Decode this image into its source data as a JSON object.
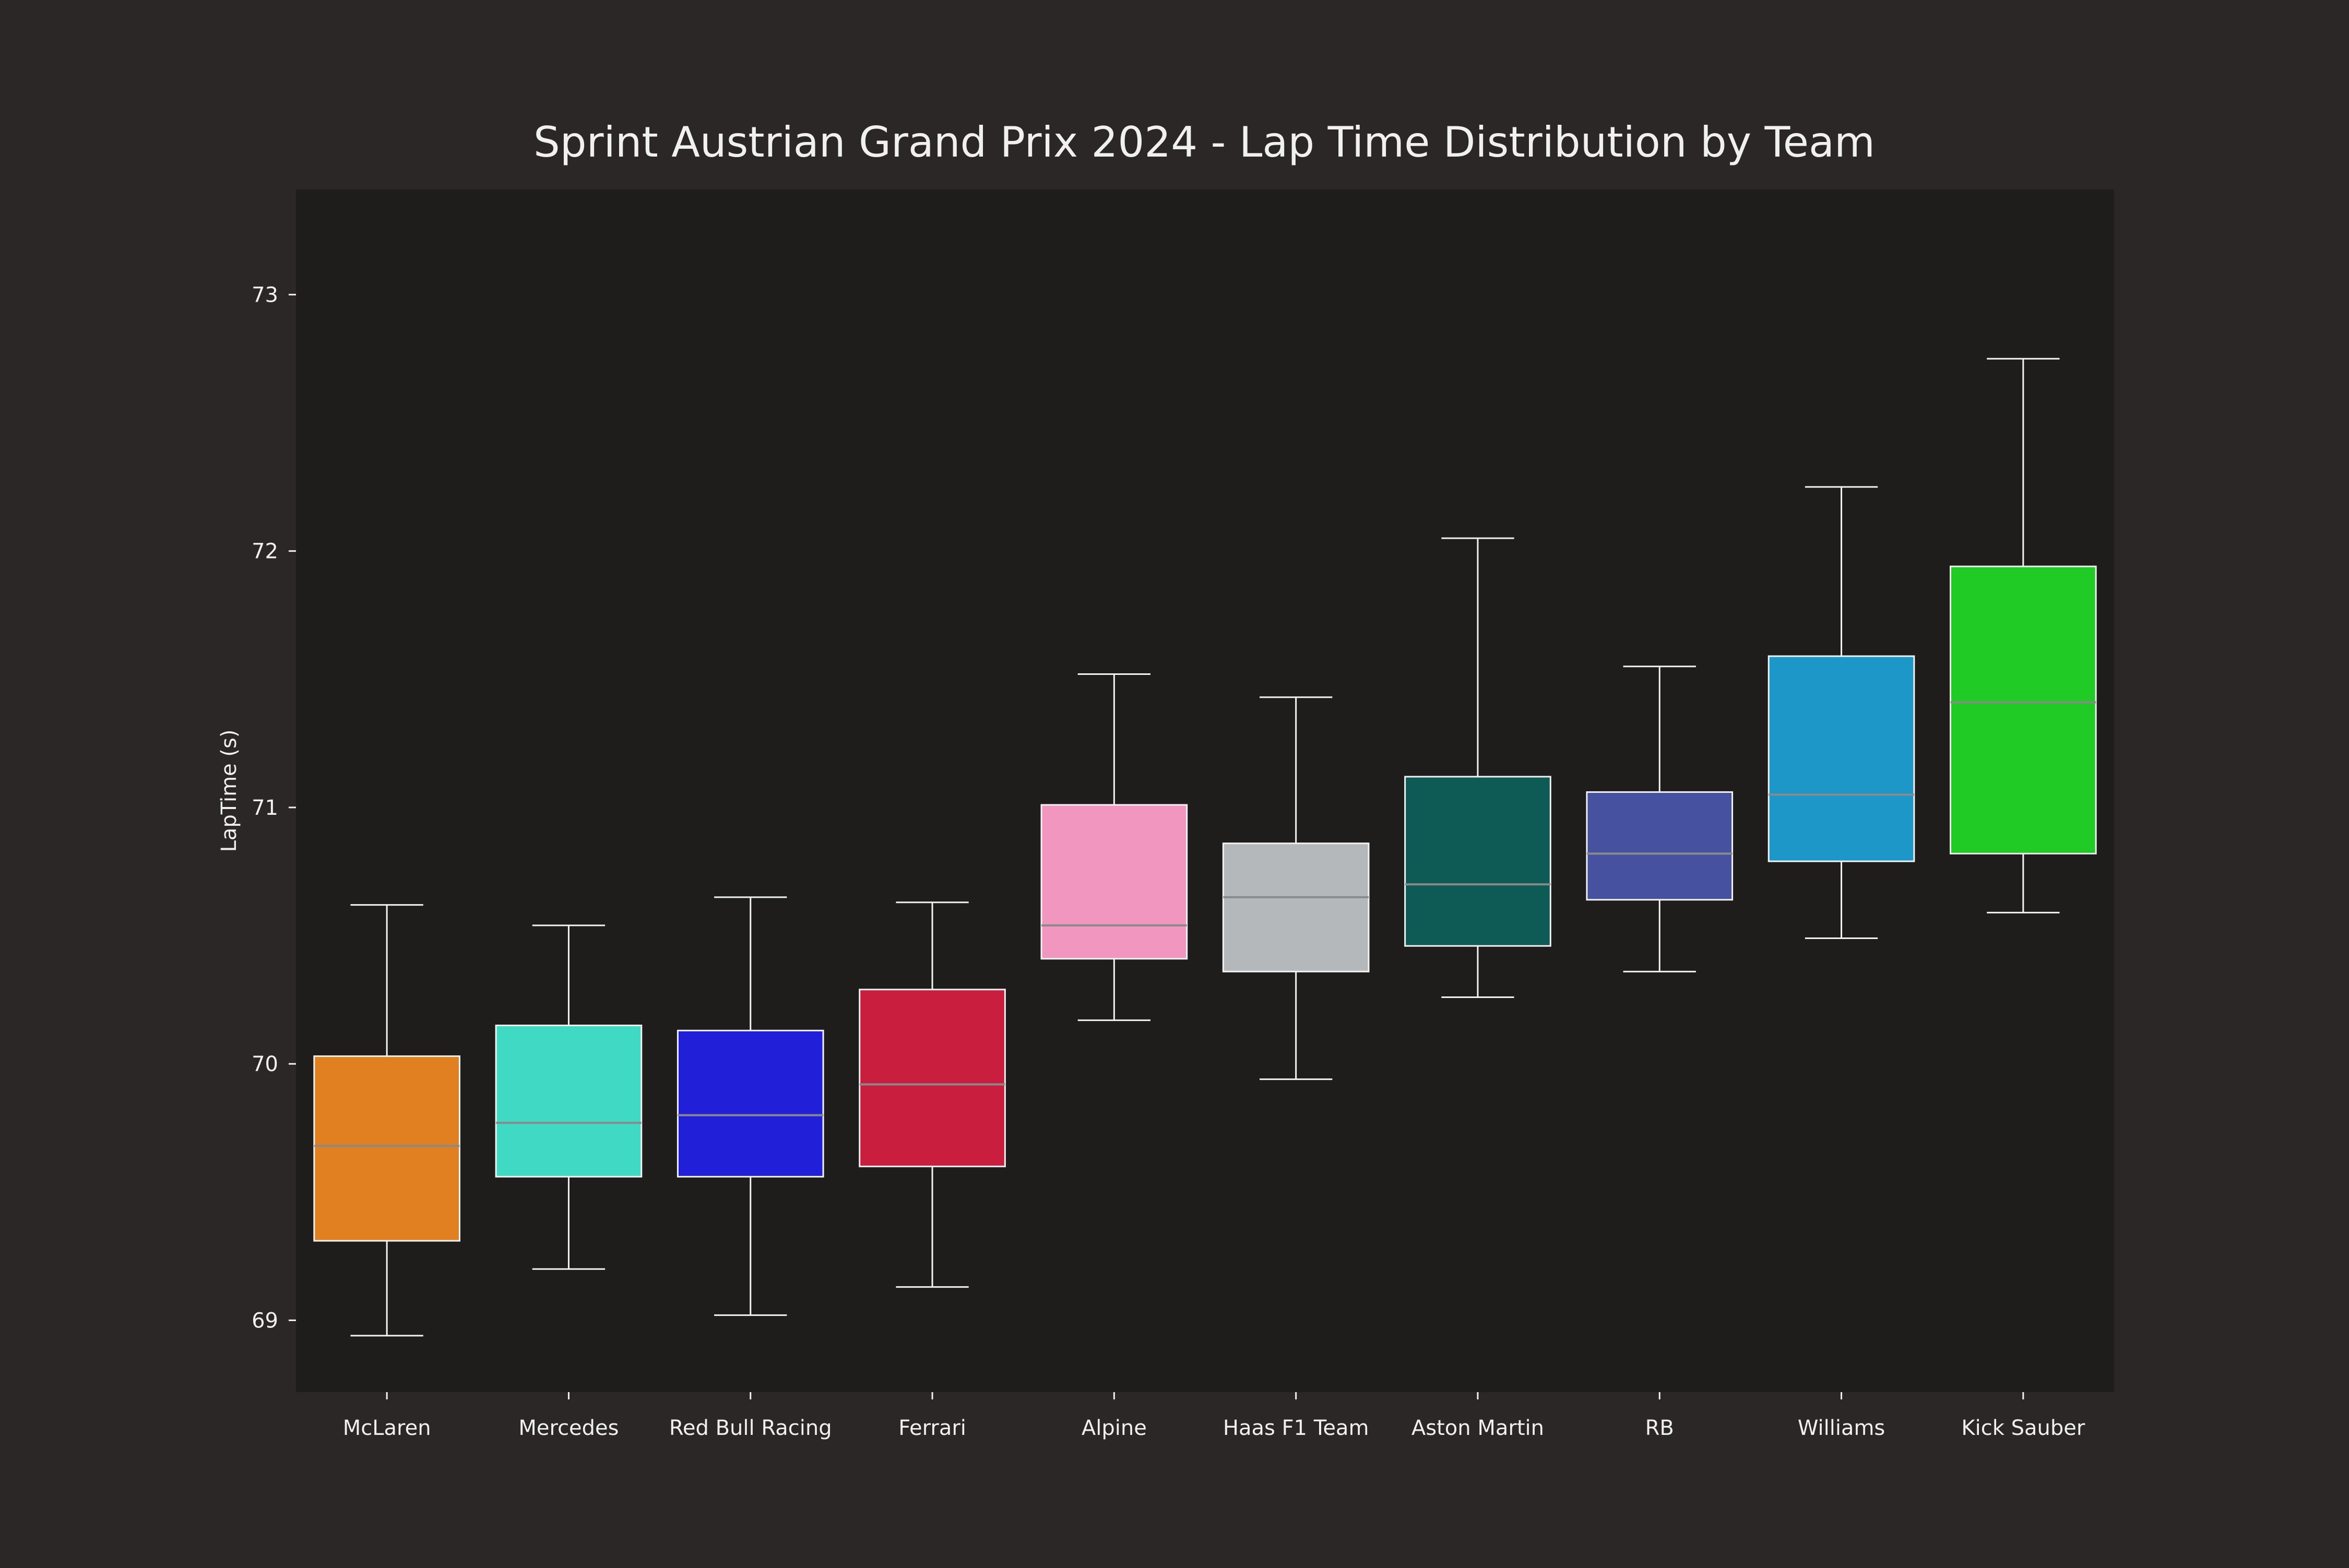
{
  "chart_data": {
    "type": "box",
    "title": "Sprint Austrian Grand Prix 2024 - Lap Time Distribution by Team",
    "xlabel": "",
    "ylabel": "LapTime (s)",
    "ylim": [
      68.72,
      73.41
    ],
    "yticks": [
      69,
      70,
      71,
      72,
      73
    ],
    "grid": false,
    "colors": {
      "figure_bg": "#2a2726",
      "axes_bg": "#1e1d1c",
      "text": "#f0f0f0",
      "box_edge": "#f2f2f2",
      "median": "#8a8a8a"
    },
    "categories": [
      "McLaren",
      "Mercedes",
      "Red Bull Racing",
      "Ferrari",
      "Alpine",
      "Haas F1 Team",
      "Aston Martin",
      "RB",
      "Williams",
      "Kick Sauber"
    ],
    "series": [
      {
        "team": "McLaren",
        "color": "#e08020",
        "whisker_low": 68.94,
        "q1": 69.31,
        "median": 69.68,
        "q3": 70.03,
        "whisker_high": 70.62
      },
      {
        "team": "Mercedes",
        "color": "#40d9c3",
        "whisker_low": 69.2,
        "q1": 69.56,
        "median": 69.77,
        "q3": 70.15,
        "whisker_high": 70.54
      },
      {
        "team": "Red Bull Racing",
        "color": "#2120d8",
        "whisker_low": 69.02,
        "q1": 69.56,
        "median": 69.8,
        "q3": 70.13,
        "whisker_high": 70.65
      },
      {
        "team": "Ferrari",
        "color": "#c91e3e",
        "whisker_low": 69.13,
        "q1": 69.6,
        "median": 69.92,
        "q3": 70.29,
        "whisker_high": 70.63
      },
      {
        "team": "Alpine",
        "color": "#f096bf",
        "whisker_low": 70.17,
        "q1": 70.41,
        "median": 70.54,
        "q3": 71.01,
        "whisker_high": 71.52
      },
      {
        "team": "Haas F1 Team",
        "color": "#b5b8bb",
        "whisker_low": 69.94,
        "q1": 70.36,
        "median": 70.65,
        "q3": 70.86,
        "whisker_high": 71.43
      },
      {
        "team": "Aston Martin",
        "color": "#0e5a55",
        "whisker_low": 70.26,
        "q1": 70.46,
        "median": 70.7,
        "q3": 71.12,
        "whisker_high": 72.05
      },
      {
        "team": "RB",
        "color": "#4652a0",
        "whisker_low": 70.36,
        "q1": 70.64,
        "median": 70.82,
        "q3": 71.06,
        "whisker_high": 71.55
      },
      {
        "team": "Williams",
        "color": "#1c97c8",
        "whisker_low": 70.49,
        "q1": 70.79,
        "median": 71.05,
        "q3": 71.59,
        "whisker_high": 72.25
      },
      {
        "team": "Kick Sauber",
        "color": "#1fcb24",
        "whisker_low": 70.59,
        "q1": 70.82,
        "median": 71.41,
        "q3": 71.94,
        "whisker_high": 72.75
      }
    ]
  }
}
